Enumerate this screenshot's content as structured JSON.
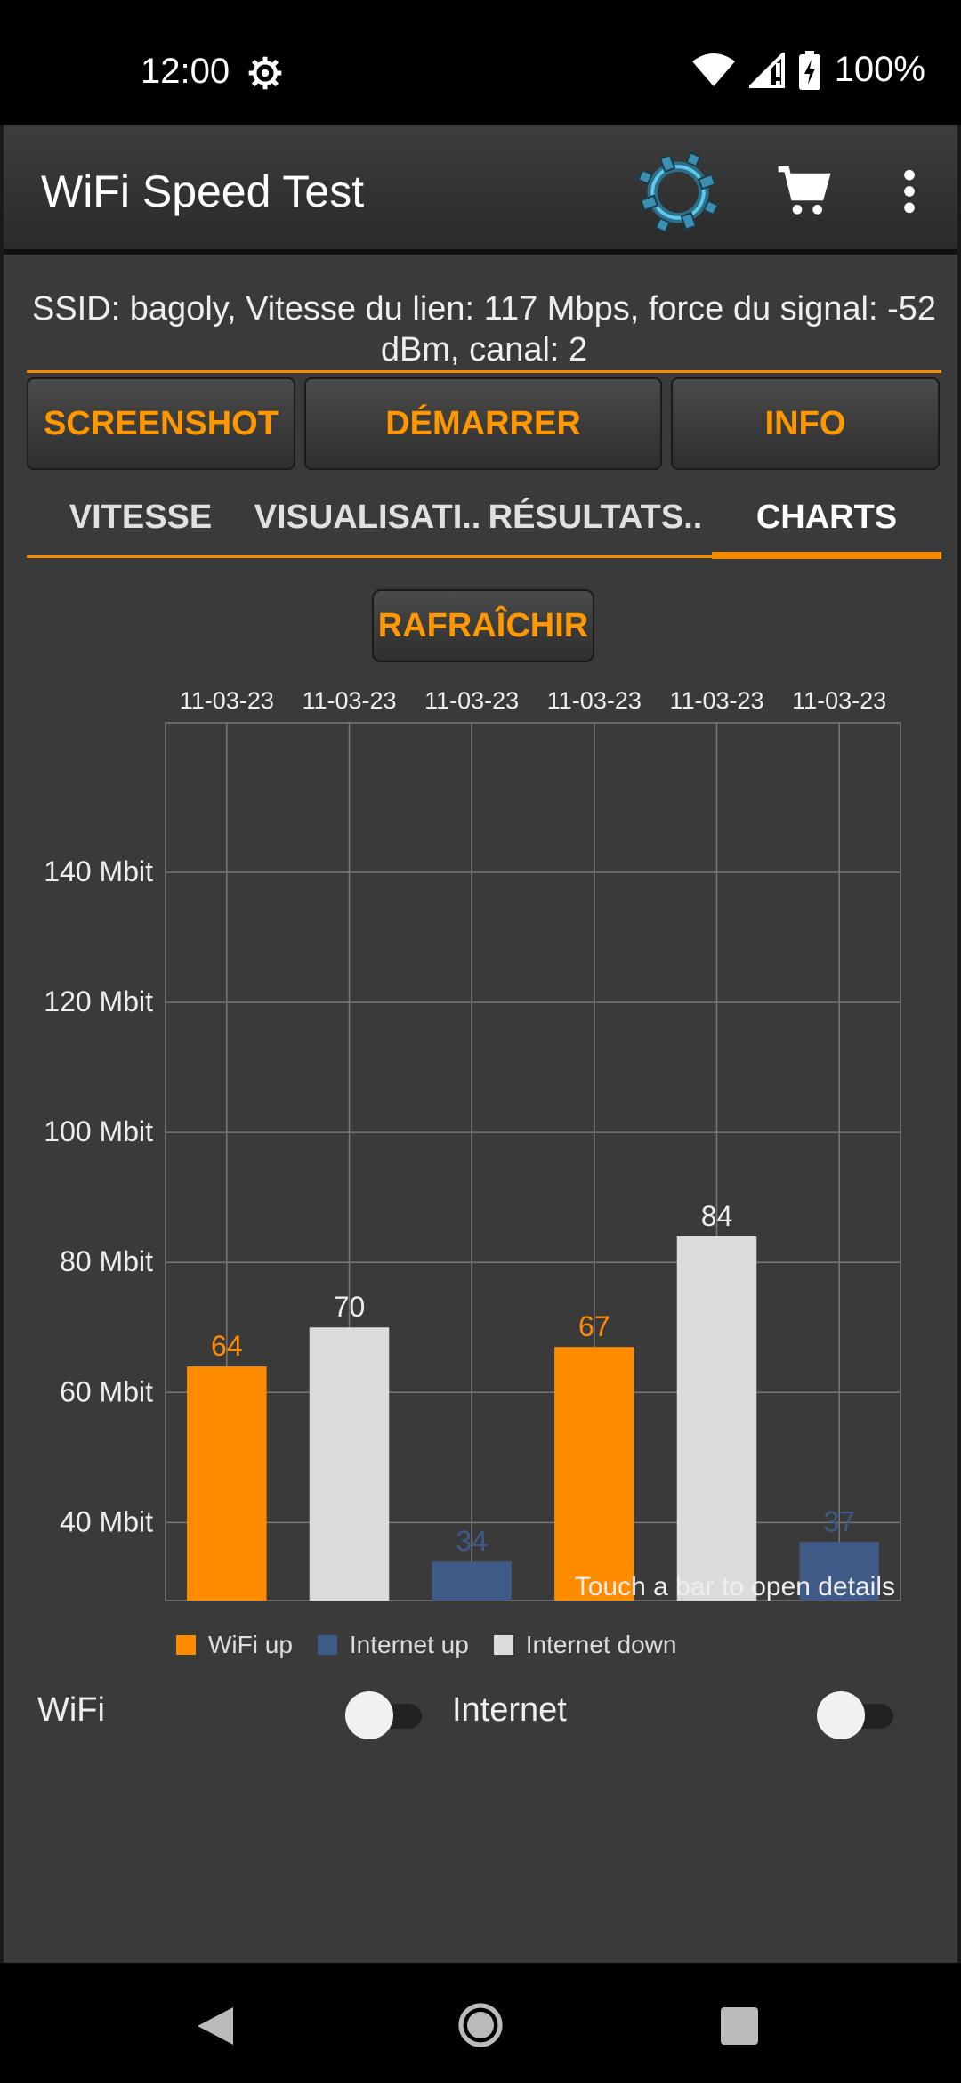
{
  "status_bar": {
    "time": "12:00",
    "battery": "100%"
  },
  "toolbar": {
    "title": "WiFi Speed Test"
  },
  "info_line": "SSID: bagoly, Vitesse du lien: 117 Mbps, force du signal: -52 dBm, canal: 2",
  "buttons": {
    "screenshot": "SCREENSHOT",
    "start": "DÉMARRER",
    "info": "INFO"
  },
  "tabs": [
    {
      "label": "VITESSE",
      "active": false
    },
    {
      "label": "VISUALISATI..",
      "active": false
    },
    {
      "label": "RÉSULTATS..",
      "active": false
    },
    {
      "label": "CHARTS",
      "active": true
    }
  ],
  "refresh_label": "RAFRAÎCHIR",
  "chart_data": {
    "type": "bar",
    "categories": [
      "11-03-23",
      "11-03-23",
      "11-03-23",
      "11-03-23",
      "11-03-23",
      "11-03-23"
    ],
    "values": [
      64,
      70,
      34,
      67,
      84,
      37
    ],
    "bar_series": [
      "WiFi up",
      "Internet down",
      "Internet up",
      "WiFi up",
      "Internet down",
      "Internet up"
    ],
    "y_ticks": [
      "40 Mbit",
      "60 Mbit",
      "80 Mbit",
      "100 Mbit",
      "120 Mbit",
      "140 Mbit"
    ],
    "y_tick_values": [
      40,
      60,
      80,
      100,
      120,
      140
    ],
    "ylim": [
      28,
      163
    ],
    "overlay_text": "Touch a bar to open details",
    "grid": true,
    "legend": [
      {
        "name": "WiFi up",
        "color": "#ff8c00"
      },
      {
        "name": "Internet up",
        "color": "#3f5a87"
      },
      {
        "name": "Internet down",
        "color": "#dcdcdc"
      }
    ],
    "legend_position": "bottom-left"
  },
  "toggles": {
    "wifi_label": "WiFi",
    "internet_label": "Internet",
    "wifi_on": false,
    "internet_on": false
  },
  "colors": {
    "accent": "#ff8c00",
    "background": "#3a3a3a"
  }
}
